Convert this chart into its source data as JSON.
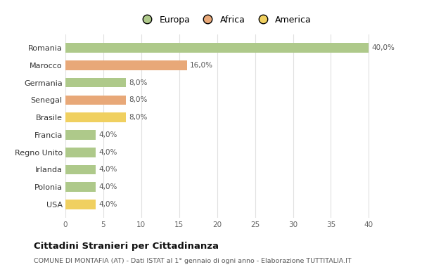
{
  "categories": [
    "Romania",
    "Marocco",
    "Germania",
    "Senegal",
    "Brasile",
    "Francia",
    "Regno Unito",
    "Irlanda",
    "Polonia",
    "USA"
  ],
  "values": [
    40.0,
    16.0,
    8.0,
    8.0,
    8.0,
    4.0,
    4.0,
    4.0,
    4.0,
    4.0
  ],
  "labels": [
    "40,0%",
    "16,0%",
    "8,0%",
    "8,0%",
    "8,0%",
    "4,0%",
    "4,0%",
    "4,0%",
    "4,0%",
    "4,0%"
  ],
  "colors": [
    "#aec98a",
    "#e8a878",
    "#aec98a",
    "#e8a878",
    "#f0d060",
    "#aec98a",
    "#aec98a",
    "#aec98a",
    "#aec98a",
    "#f0d060"
  ],
  "legend_labels": [
    "Europa",
    "Africa",
    "America"
  ],
  "legend_colors": [
    "#aec98a",
    "#e8a878",
    "#f0d060"
  ],
  "title": "Cittadini Stranieri per Cittadinanza",
  "subtitle": "COMUNE DI MONTAFIA (AT) - Dati ISTAT al 1° gennaio di ogni anno - Elaborazione TUTTITALIA.IT",
  "xlim": [
    0,
    42
  ],
  "xticks": [
    0,
    5,
    10,
    15,
    20,
    25,
    30,
    35,
    40
  ],
  "bg_color": "#ffffff",
  "grid_color": "#e0e0e0",
  "bar_height": 0.55
}
